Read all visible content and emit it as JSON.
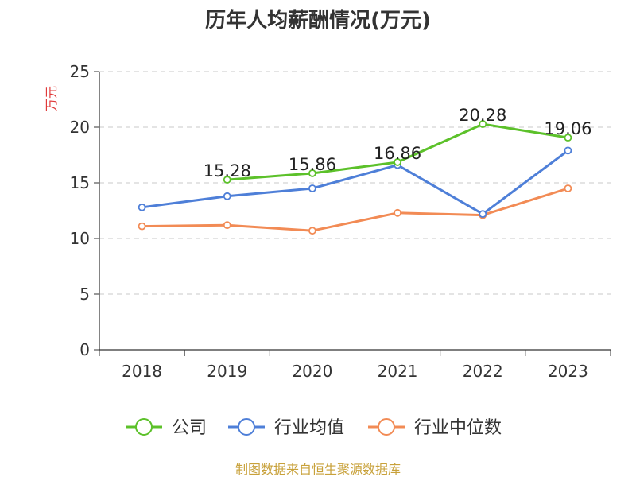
{
  "chart_data": {
    "type": "line",
    "title": "历年人均薪酬情况(万元)",
    "ylabel": "万元",
    "xlabel": "",
    "categories": [
      "2018",
      "2019",
      "2020",
      "2021",
      "2022",
      "2023"
    ],
    "ylim": [
      0,
      25
    ],
    "yticks": [
      0,
      5,
      10,
      15,
      20,
      25
    ],
    "grid": true,
    "legend_position": "bottom",
    "series": [
      {
        "name": "公司",
        "color": "#5cc12a",
        "values": [
          null,
          15.28,
          15.86,
          16.86,
          20.28,
          19.06
        ],
        "labels": [
          "",
          "15.28",
          "15.86",
          "16.86",
          "20.28",
          "19.06"
        ]
      },
      {
        "name": "行业均值",
        "color": "#4e7fd8",
        "values": [
          12.8,
          13.8,
          14.5,
          16.6,
          12.2,
          17.9
        ],
        "labels": []
      },
      {
        "name": "行业中位数",
        "color": "#f28b55",
        "values": [
          11.1,
          11.2,
          10.7,
          12.3,
          12.1,
          14.5
        ],
        "labels": []
      }
    ]
  },
  "source": "制图数据来自恒生聚源数据库"
}
